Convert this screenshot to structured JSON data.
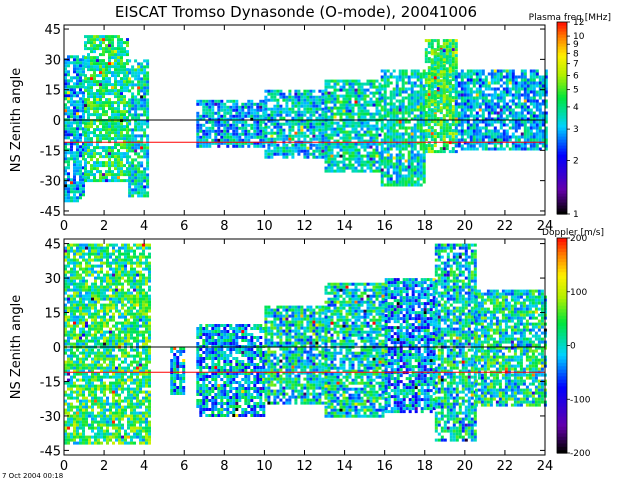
{
  "title": "EISCAT Tromso Dynasonde (O-mode),  20041006",
  "footer": "7 Oct 2004 00:18",
  "chart_data": [
    {
      "type": "heatmap",
      "panel": "top",
      "ylabel": "NS Zenith angle",
      "xlim": [
        0,
        24
      ],
      "ylim": [
        -47,
        47
      ],
      "x_ticks": [
        "0",
        "2",
        "4",
        "6",
        "8",
        "10",
        "12",
        "14",
        "16",
        "18",
        "20",
        "22",
        "24"
      ],
      "y_ticks": [
        "45",
        "30",
        "15",
        "0",
        "-15",
        "-30",
        "-45"
      ],
      "ref_lines": [
        {
          "y": 0,
          "color": "#000000"
        },
        {
          "y": -11,
          "color": "#ff0000"
        }
      ],
      "colorbar": {
        "title": "Plasma freq [MHz]",
        "scale": "log",
        "range": [
          1,
          12
        ],
        "ticks": [
          "12",
          "10",
          "9",
          "8",
          "7",
          "6",
          "5",
          "4",
          "3",
          "2",
          "1"
        ]
      },
      "blocks": [
        {
          "x": [
            0.0,
            1.0
          ],
          "y": [
            -40,
            32
          ],
          "value": 3.0
        },
        {
          "x": [
            1.0,
            3.2
          ],
          "y": [
            -30,
            42
          ],
          "value": 4.0
        },
        {
          "x": [
            3.2,
            4.2
          ],
          "y": [
            -38,
            30
          ],
          "value": 3.5
        },
        {
          "x": [
            6.6,
            10.0
          ],
          "y": [
            -13,
            10
          ],
          "value": 3.0
        },
        {
          "x": [
            10.0,
            13.0
          ],
          "y": [
            -18,
            15
          ],
          "value": 3.2
        },
        {
          "x": [
            13.0,
            15.8
          ],
          "y": [
            -25,
            20
          ],
          "value": 3.5
        },
        {
          "x": [
            15.8,
            18.0
          ],
          "y": [
            -32,
            25
          ],
          "value": 3.5
        },
        {
          "x": [
            18.0,
            19.5
          ],
          "y": [
            -15,
            40
          ],
          "value": 4.5
        },
        {
          "x": [
            19.5,
            24.0
          ],
          "y": [
            -15,
            25
          ],
          "value": 3.0
        },
        {
          "x": [
            18.3,
            19.3
          ],
          "y": [
            5,
            35
          ],
          "value": 4.5
        }
      ]
    },
    {
      "type": "heatmap",
      "panel": "bottom",
      "ylabel": "NS Zenith angle",
      "xlim": [
        0,
        24
      ],
      "ylim": [
        -47,
        47
      ],
      "x_ticks": [
        "0",
        "2",
        "4",
        "6",
        "8",
        "10",
        "12",
        "14",
        "16",
        "18",
        "20",
        "22",
        "24"
      ],
      "y_ticks": [
        "45",
        "30",
        "15",
        "0",
        "-15",
        "-30",
        "-45"
      ],
      "ref_lines": [
        {
          "y": 0,
          "color": "#000000"
        },
        {
          "y": -11,
          "color": "#ff0000"
        }
      ],
      "colorbar": {
        "title": "Doppler [m/s]",
        "scale": "linear",
        "range": [
          -200,
          200
        ],
        "ticks": [
          "200",
          "100",
          "0",
          "-100",
          "-200"
        ]
      },
      "blocks": [
        {
          "x": [
            0.0,
            4.2
          ],
          "y": [
            -42,
            45
          ],
          "value": 30
        },
        {
          "x": [
            5.3,
            6.0
          ],
          "y": [
            -20,
            0
          ],
          "value": -20
        },
        {
          "x": [
            6.6,
            10.0
          ],
          "y": [
            -30,
            10
          ],
          "value": -20
        },
        {
          "x": [
            10.0,
            13.0
          ],
          "y": [
            -25,
            18
          ],
          "value": 0
        },
        {
          "x": [
            13.0,
            16.0
          ],
          "y": [
            -30,
            28
          ],
          "value": 0
        },
        {
          "x": [
            16.0,
            18.5
          ],
          "y": [
            -28,
            30
          ],
          "value": -30
        },
        {
          "x": [
            18.5,
            20.5
          ],
          "y": [
            -40,
            45
          ],
          "value": 0
        },
        {
          "x": [
            20.5,
            24.0
          ],
          "y": [
            -25,
            25
          ],
          "value": 10
        }
      ]
    }
  ]
}
